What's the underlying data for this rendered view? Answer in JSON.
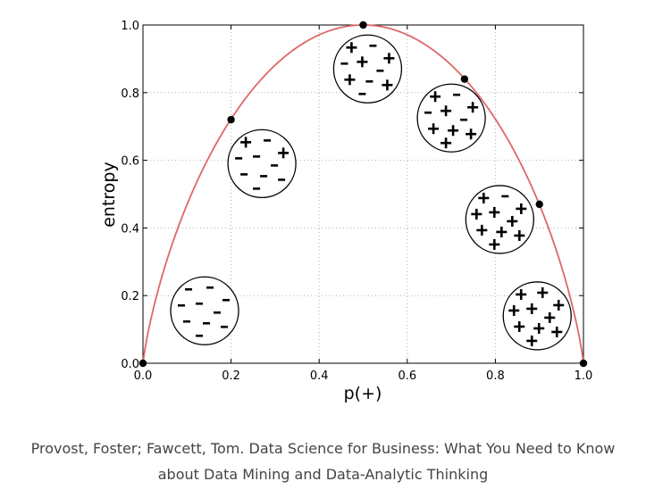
{
  "chart_data": {
    "type": "line",
    "xlabel": "p(+)",
    "ylabel": "entropy",
    "xlim": [
      0.0,
      1.0
    ],
    "ylim": [
      0.0,
      1.0
    ],
    "grid": true,
    "x_ticks": [
      "0.0",
      "0.2",
      "0.4",
      "0.6",
      "0.8",
      "1.0"
    ],
    "y_ticks": [
      "0.0",
      "0.2",
      "0.4",
      "0.6",
      "0.8",
      "1.0"
    ],
    "curve": {
      "function": "binary entropy",
      "color": "#e06666"
    },
    "points": [
      {
        "x": 0.0,
        "y": 0.0
      },
      {
        "x": 0.2,
        "y": 0.72
      },
      {
        "x": 0.5,
        "y": 1.0
      },
      {
        "x": 0.73,
        "y": 0.84
      },
      {
        "x": 0.9,
        "y": 0.47
      },
      {
        "x": 1.0,
        "y": 0.0
      }
    ],
    "illustrations": [
      {
        "cx": 0.14,
        "cy": 0.155,
        "pos": 0,
        "neg": 10
      },
      {
        "cx": 0.27,
        "cy": 0.59,
        "pos": 2,
        "neg": 8
      },
      {
        "cx": 0.51,
        "cy": 0.87,
        "pos": 5,
        "neg": 5
      },
      {
        "cx": 0.7,
        "cy": 0.725,
        "pos": 7,
        "neg": 3
      },
      {
        "cx": 0.81,
        "cy": 0.425,
        "pos": 9,
        "neg": 1
      },
      {
        "cx": 0.895,
        "cy": 0.14,
        "pos": 10,
        "neg": 0
      }
    ]
  },
  "caption": {
    "line1": "Provost, Foster; Fawcett, Tom. Data Science for Business: What You Need to Know",
    "line2": "about Data Mining and Data-Analytic Thinking"
  }
}
